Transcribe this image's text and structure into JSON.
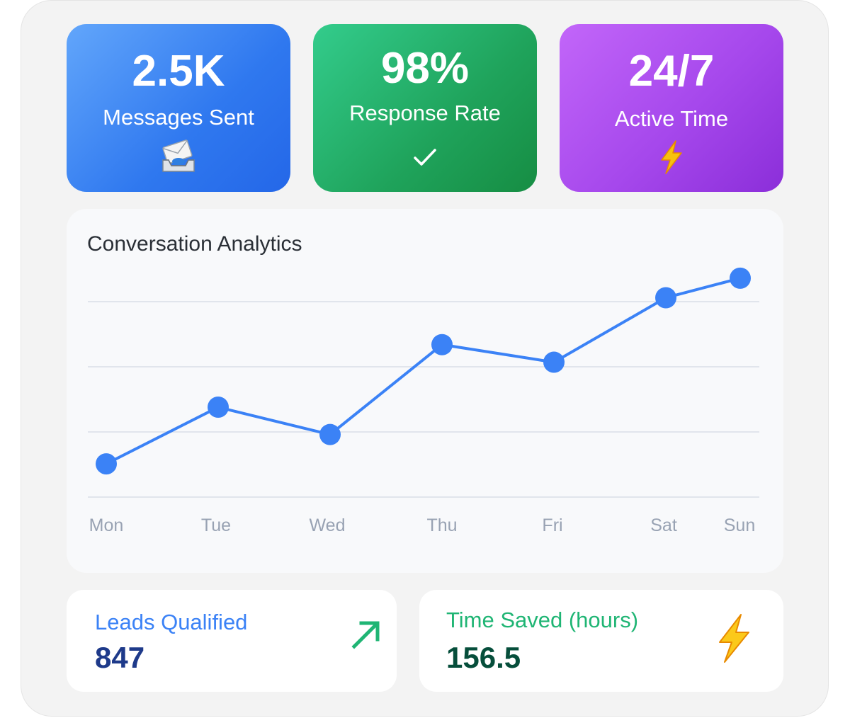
{
  "stats": [
    {
      "value": "2.5K",
      "label": "Messages Sent",
      "icon": "inbox-tray-envelope-icon"
    },
    {
      "value": "98%",
      "label": "Response Rate",
      "icon": "checkmark-icon"
    },
    {
      "value": "24/7",
      "label": "Active Time",
      "icon": "lightning-icon"
    }
  ],
  "chart": {
    "title": "Conversation Analytics"
  },
  "chart_data": {
    "type": "line",
    "title": "Conversation Analytics",
    "categories": [
      "Mon",
      "Tue",
      "Wed",
      "Thu",
      "Fri",
      "Sat",
      "Sun"
    ],
    "values": [
      17,
      46,
      32,
      78,
      69,
      102,
      112
    ],
    "ylim": [
      0,
      100
    ],
    "grid": true,
    "xlabel": "",
    "ylabel": "",
    "color": "#3b82f6"
  },
  "summary": [
    {
      "label": "Leads Qualified",
      "value": "847",
      "icon": "trend-up-arrow-icon",
      "color": "#1fb574"
    },
    {
      "label": "Time Saved (hours)",
      "value": "156.5",
      "icon": "lightning-icon",
      "color": "#f5b700"
    }
  ]
}
